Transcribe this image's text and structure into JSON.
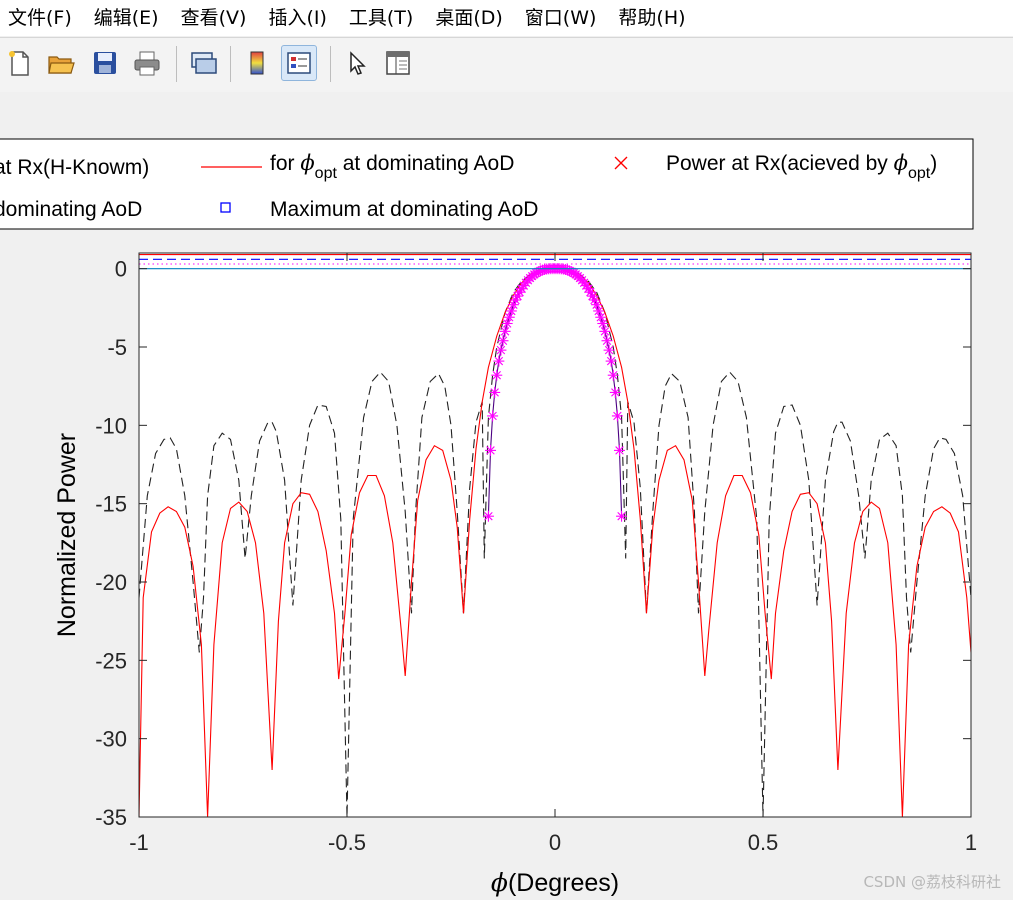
{
  "menubar": {
    "items": [
      "文件(F)",
      "编辑(E)",
      "查看(V)",
      "插入(I)",
      "工具(T)",
      "桌面(D)",
      "窗口(W)",
      "帮助(H)"
    ]
  },
  "toolbar": {
    "buttons": [
      {
        "name": "new-figure-icon"
      },
      {
        "name": "open-file-icon"
      },
      {
        "name": "save-icon"
      },
      {
        "name": "print-icon"
      },
      {
        "name": "link-plot-icon"
      },
      {
        "name": "insert-colorbar-icon"
      },
      {
        "name": "insert-legend-icon"
      },
      {
        "name": "edit-plot-cursor-icon"
      },
      {
        "name": "property-inspector-icon"
      }
    ]
  },
  "watermark": "CSDN @荔枝科研社",
  "chart_data": {
    "type": "line",
    "xlabel_prefix": "ϕ",
    "xlabel_text": "(Degrees)",
    "ylabel": "Normalized Power",
    "xlim": [
      -1,
      1
    ],
    "ylim": [
      -35,
      1
    ],
    "xticks": [
      -1,
      -0.5,
      0,
      0.5,
      1
    ],
    "xtick_labels": [
      "-1",
      "-0.5",
      "0",
      "0.5",
      "1"
    ],
    "yticks": [
      0,
      -5,
      -10,
      -15,
      -20,
      -25,
      -30,
      -35
    ],
    "ytick_labels": [
      "0",
      "-5",
      "-10",
      "-15",
      "-20",
      "-25",
      "-30",
      "-35"
    ],
    "grid": false,
    "legend": {
      "placement": "top, outside plot",
      "entries": [
        {
          "label": "at Rx(H-Knowm)",
          "style": "cut-off"
        },
        {
          "label_prefix": "for ",
          "label_symbol": "ϕ",
          "label_sub": "opt",
          "label_suffix": " at dominating AoD",
          "color": "#ff0000",
          "style": "line"
        },
        {
          "label_prefix": "Power at Rx(acieved by ",
          "label_symbol": "ϕ",
          "label_sub": "opt",
          "label_suffix": ")",
          "color": "#ff0000",
          "style": "x-marker"
        },
        {
          "label": "dominating AoD",
          "style": "cut-off"
        },
        {
          "label": "Maximum at dominating AoD",
          "color": "#0000ff",
          "style": "square-marker"
        }
      ]
    },
    "series": [
      {
        "color": "#222222",
        "dash": "dashed",
        "x": [
          -1,
          -0.98,
          -0.96,
          -0.94,
          -0.925,
          -0.91,
          -0.89,
          -0.87,
          -0.855,
          -0.845,
          -0.835,
          -0.82,
          -0.8,
          -0.78,
          -0.76,
          -0.745,
          -0.73,
          -0.71,
          -0.69,
          -0.68,
          -0.67,
          -0.65,
          -0.63,
          -0.61,
          -0.59,
          -0.57,
          -0.55,
          -0.53,
          -0.515,
          -0.5,
          -0.485,
          -0.46,
          -0.44,
          -0.42,
          -0.4,
          -0.38,
          -0.36,
          -0.345,
          -0.335,
          -0.32,
          -0.3,
          -0.28,
          -0.265,
          -0.25,
          -0.235,
          -0.22,
          -0.205,
          -0.19,
          -0.175,
          -0.17,
          -0.16,
          -0.15,
          -0.14,
          -0.12,
          -0.1,
          -0.08,
          -0.06,
          -0.04,
          -0.02,
          0,
          0.02,
          0.04,
          0.06,
          0.08,
          0.1,
          0.12,
          0.14,
          0.15,
          0.16,
          0.17,
          0.175,
          0.19,
          0.205,
          0.22,
          0.235,
          0.25,
          0.265,
          0.28,
          0.3,
          0.32,
          0.335,
          0.345,
          0.36,
          0.38,
          0.4,
          0.42,
          0.44,
          0.46,
          0.485,
          0.5,
          0.515,
          0.53,
          0.55,
          0.57,
          0.59,
          0.61,
          0.63,
          0.65,
          0.67,
          0.68,
          0.69,
          0.71,
          0.73,
          0.745,
          0.76,
          0.78,
          0.8,
          0.82,
          0.835,
          0.845,
          0.855,
          0.87,
          0.89,
          0.91,
          0.925,
          0.94,
          0.96,
          0.98,
          1
        ],
        "y": [
          -21,
          -14.5,
          -11.8,
          -10.9,
          -10.8,
          -11.5,
          -14.5,
          -20,
          -24.5,
          -21,
          -14.5,
          -11.3,
          -10.5,
          -10.9,
          -13.5,
          -18.5,
          -14.5,
          -11,
          -9.8,
          -9.8,
          -10.4,
          -13.5,
          -21.5,
          -13.5,
          -10,
          -8.7,
          -8.8,
          -10.5,
          -16,
          -35,
          -16,
          -9.5,
          -7.2,
          -6.6,
          -7.2,
          -10,
          -15.5,
          -22,
          -15.5,
          -9.5,
          -7.2,
          -6.7,
          -7.5,
          -10,
          -15.5,
          -22,
          -14,
          -9.8,
          -8.5,
          -18.5,
          -9.5,
          -6.8,
          -5,
          -2.8,
          -1.5,
          -0.8,
          -0.4,
          -0.15,
          -0.03,
          0,
          -0.03,
          -0.15,
          -0.4,
          -0.8,
          -1.5,
          -2.8,
          -5,
          -6.8,
          -9.5,
          -18.5,
          -8.5,
          -9.8,
          -14,
          -22,
          -15.5,
          -10,
          -7.5,
          -6.7,
          -7.2,
          -9.5,
          -15.5,
          -22,
          -15.5,
          -10,
          -7.2,
          -6.6,
          -7.2,
          -9.5,
          -16,
          -35,
          -16,
          -10.5,
          -8.8,
          -8.7,
          -10,
          -13.5,
          -21.5,
          -13.5,
          -10.4,
          -9.8,
          -9.8,
          -11,
          -14.5,
          -18.5,
          -13.5,
          -10.9,
          -10.5,
          -11.3,
          -14.5,
          -21,
          -24.5,
          -20,
          -14.5,
          -11.5,
          -10.8,
          -10.9,
          -11.8,
          -14.5,
          -21
        ]
      },
      {
        "color": "#ff0000",
        "dash": "solid",
        "x": [
          -1,
          -0.99,
          -0.97,
          -0.95,
          -0.93,
          -0.91,
          -0.89,
          -0.87,
          -0.85,
          -0.835,
          -0.82,
          -0.8,
          -0.78,
          -0.76,
          -0.74,
          -0.72,
          -0.7,
          -0.68,
          -0.665,
          -0.65,
          -0.63,
          -0.61,
          -0.59,
          -0.57,
          -0.55,
          -0.53,
          -0.52,
          -0.505,
          -0.49,
          -0.47,
          -0.45,
          -0.43,
          -0.41,
          -0.39,
          -0.37,
          -0.36,
          -0.345,
          -0.33,
          -0.31,
          -0.29,
          -0.27,
          -0.25,
          -0.235,
          -0.22,
          -0.205,
          -0.19,
          -0.175,
          -0.16,
          -0.14,
          -0.12,
          -0.1,
          -0.08,
          -0.06,
          -0.04,
          -0.02,
          0,
          0.02,
          0.04,
          0.06,
          0.08,
          0.1,
          0.12,
          0.14,
          0.16,
          0.175,
          0.19,
          0.205,
          0.22,
          0.235,
          0.25,
          0.27,
          0.29,
          0.31,
          0.33,
          0.345,
          0.36,
          0.37,
          0.39,
          0.41,
          0.43,
          0.45,
          0.47,
          0.49,
          0.505,
          0.52,
          0.53,
          0.55,
          0.57,
          0.59,
          0.61,
          0.63,
          0.65,
          0.665,
          0.68,
          0.7,
          0.72,
          0.74,
          0.76,
          0.78,
          0.8,
          0.82,
          0.835,
          0.85,
          0.87,
          0.89,
          0.91,
          0.93,
          0.95,
          0.97,
          0.99,
          1
        ],
        "y": [
          -35,
          -21,
          -16.8,
          -15.6,
          -15.2,
          -15.5,
          -16.5,
          -19,
          -24,
          -35,
          -24,
          -17.5,
          -15.3,
          -14.9,
          -15.5,
          -17.5,
          -22,
          -32,
          -22.5,
          -17.5,
          -15,
          -14.3,
          -14.4,
          -15.5,
          -18,
          -22,
          -26.2,
          -22,
          -17,
          -14.3,
          -13.2,
          -13.2,
          -14.5,
          -17.5,
          -23,
          -26,
          -20,
          -14.8,
          -12.2,
          -11.3,
          -11.6,
          -13.5,
          -16.5,
          -22,
          -16,
          -11.5,
          -8.5,
          -6.3,
          -4.3,
          -2.8,
          -1.7,
          -0.9,
          -0.4,
          -0.12,
          -0.02,
          0,
          -0.02,
          -0.12,
          -0.4,
          -0.9,
          -1.7,
          -2.8,
          -4.3,
          -6.3,
          -8.5,
          -11.5,
          -16,
          -22,
          -16.5,
          -13.5,
          -11.6,
          -11.3,
          -12.2,
          -14.8,
          -20,
          -26,
          -23,
          -17.5,
          -14.5,
          -13.2,
          -13.2,
          -14.3,
          -17,
          -22,
          -26.2,
          -22,
          -18,
          -15.5,
          -14.4,
          -14.3,
          -15,
          -17.5,
          -22.5,
          -32,
          -22,
          -17.5,
          -15.5,
          -14.9,
          -15.3,
          -17.5,
          -24,
          -35,
          -24,
          -19,
          -16.5,
          -15.5,
          -15.2,
          -15.6,
          -16.8,
          -21,
          -24.5
        ]
      },
      {
        "color": "#4b0082",
        "dash": "solid",
        "marker": "asterisk",
        "marker_color": "#ff00ff",
        "x": [
          -0.16,
          -0.155,
          -0.15,
          -0.145,
          -0.14,
          -0.135,
          -0.13,
          -0.125,
          -0.12,
          -0.115,
          -0.11,
          -0.105,
          -0.1,
          -0.095,
          -0.09,
          -0.085,
          -0.08,
          -0.075,
          -0.07,
          -0.065,
          -0.06,
          -0.055,
          -0.05,
          -0.045,
          -0.04,
          -0.035,
          -0.03,
          -0.025,
          -0.02,
          -0.015,
          -0.01,
          -0.005,
          0,
          0.005,
          0.01,
          0.015,
          0.02,
          0.025,
          0.03,
          0.035,
          0.04,
          0.045,
          0.05,
          0.055,
          0.06,
          0.065,
          0.07,
          0.075,
          0.08,
          0.085,
          0.09,
          0.095,
          0.1,
          0.105,
          0.11,
          0.115,
          0.12,
          0.125,
          0.13,
          0.135,
          0.14,
          0.145,
          0.15,
          0.155,
          0.16
        ],
        "y": [
          -15.8,
          -11.6,
          -9.4,
          -7.9,
          -6.8,
          -5.9,
          -5.2,
          -4.6,
          -4,
          -3.5,
          -3.1,
          -2.7,
          -2.3,
          -2,
          -1.75,
          -1.5,
          -1.28,
          -1.08,
          -0.9,
          -0.74,
          -0.6,
          -0.48,
          -0.37,
          -0.28,
          -0.2,
          -0.14,
          -0.09,
          -0.05,
          -0.025,
          -0.01,
          -0.003,
          0,
          0,
          0,
          -0.003,
          -0.01,
          -0.025,
          -0.05,
          -0.09,
          -0.14,
          -0.2,
          -0.28,
          -0.37,
          -0.48,
          -0.6,
          -0.74,
          -0.9,
          -1.08,
          -1.28,
          -1.5,
          -1.75,
          -2,
          -2.3,
          -2.7,
          -3.1,
          -3.5,
          -4,
          -4.6,
          -5.2,
          -5.9,
          -6.8,
          -7.9,
          -9.4,
          -11.6,
          -15.8
        ]
      },
      {
        "color": "#ff0000",
        "dash": "solid",
        "x": [
          -1,
          1
        ],
        "y": [
          0.9,
          0.9
        ]
      },
      {
        "color": "#0000ff",
        "dash": "dashed",
        "x": [
          -1,
          1
        ],
        "y": [
          0.6,
          0.6
        ]
      },
      {
        "color": "#ff00ff",
        "dash": "dotted",
        "x": [
          -1,
          1
        ],
        "y": [
          0.3,
          0.3
        ]
      },
      {
        "color": "#0080c0",
        "dash": "solid",
        "x": [
          -1,
          1
        ],
        "y": [
          0,
          0
        ]
      }
    ]
  }
}
